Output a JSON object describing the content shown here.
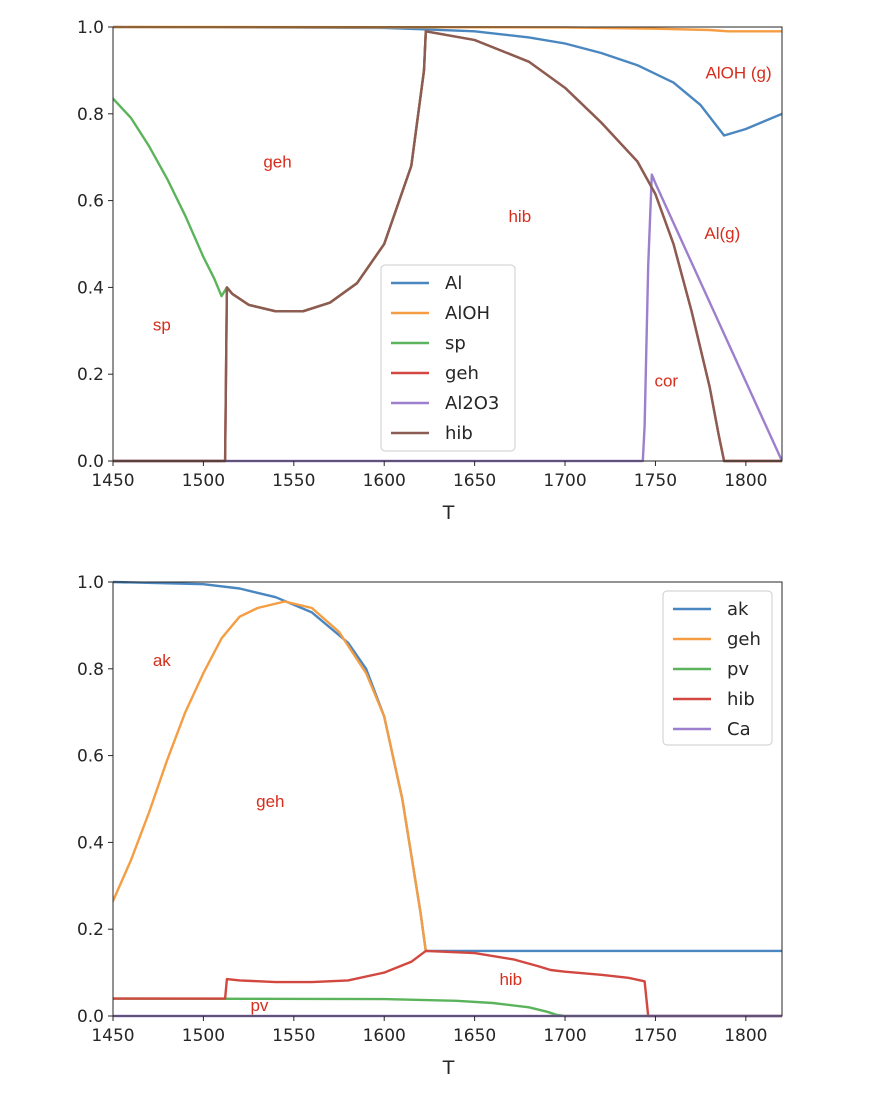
{
  "colors": {
    "blue": "#4a86c0",
    "orange": "#f59d43",
    "green": "#5bb45b",
    "red": "#d2473f",
    "purple": "#9c7fcd",
    "brown": "#8b5d52",
    "annotation": "#d62d1d"
  },
  "chart_data": [
    {
      "type": "line",
      "xlabel": "T",
      "ylabel": "",
      "xlim": [
        1450,
        1820
      ],
      "ylim": [
        0.0,
        1.0
      ],
      "xticks": [
        "1450",
        "1500",
        "1550",
        "1600",
        "1650",
        "1700",
        "1750",
        "1800"
      ],
      "yticks": [
        "0.0",
        "0.2",
        "0.4",
        "0.6",
        "0.8",
        "1.0"
      ],
      "grid": false,
      "legend_position": "lower-center",
      "series": [
        {
          "name": "Al",
          "color": "blue",
          "x": [
            1450,
            1600,
            1620,
            1650,
            1680,
            1700,
            1720,
            1740,
            1760,
            1775,
            1788,
            1800,
            1820
          ],
          "y": [
            1.0,
            0.998,
            0.995,
            0.99,
            0.976,
            0.962,
            0.94,
            0.912,
            0.872,
            0.82,
            0.75,
            0.765,
            0.8
          ]
        },
        {
          "name": "AlOH",
          "color": "orange",
          "x": [
            1450,
            1700,
            1750,
            1780,
            1790,
            1820
          ],
          "y": [
            1.0,
            0.999,
            0.996,
            0.993,
            0.99,
            0.99
          ]
        },
        {
          "name": "sp",
          "color": "green",
          "x": [
            1450,
            1460,
            1470,
            1480,
            1490,
            1500,
            1506,
            1510,
            1513,
            1516,
            1525,
            1540,
            1555,
            1570,
            1585,
            1600,
            1615,
            1622,
            1623
          ],
          "y": [
            0.835,
            0.79,
            0.725,
            0.65,
            0.565,
            0.47,
            0.42,
            0.38,
            0.4,
            0.385,
            0.36,
            0.345,
            0.345,
            0.365,
            0.41,
            0.5,
            0.68,
            0.9,
            0.99
          ]
        },
        {
          "name": "geh",
          "color": "red",
          "x": [
            1450,
            1512,
            1513,
            1516,
            1525,
            1540,
            1555,
            1570,
            1585,
            1600,
            1615,
            1622,
            1623,
            1650,
            1680,
            1700,
            1720,
            1740,
            1750,
            1760,
            1770,
            1780,
            1785,
            1788,
            1820
          ],
          "y": [
            0.0,
            0.0,
            0.4,
            0.385,
            0.36,
            0.345,
            0.345,
            0.365,
            0.41,
            0.5,
            0.68,
            0.9,
            0.99,
            0.97,
            0.92,
            0.86,
            0.78,
            0.69,
            0.615,
            0.5,
            0.345,
            0.17,
            0.06,
            0.0,
            0.0
          ]
        },
        {
          "name": "Al2O3",
          "color": "purple",
          "x": [
            1450,
            1743,
            1744,
            1746,
            1748,
            1750,
            1820
          ],
          "y": [
            0.0,
            0.0,
            0.08,
            0.45,
            0.66,
            0.64,
            0.0
          ]
        },
        {
          "name": "hib",
          "color": "brown",
          "x": [
            1450,
            1512,
            1513,
            1516,
            1525,
            1540,
            1555,
            1570,
            1585,
            1600,
            1615,
            1622,
            1623,
            1650,
            1680,
            1700,
            1720,
            1740,
            1750,
            1760,
            1770,
            1780,
            1785,
            1788,
            1820
          ],
          "y": [
            0.0,
            0.0,
            0.4,
            0.385,
            0.36,
            0.345,
            0.345,
            0.365,
            0.41,
            0.5,
            0.68,
            0.9,
            0.99,
            0.97,
            0.92,
            0.86,
            0.78,
            0.69,
            0.615,
            0.5,
            0.345,
            0.17,
            0.06,
            0.0,
            0.0
          ]
        }
      ],
      "annotations": [
        {
          "text": "geh",
          "x": 1541,
          "y": 0.69
        },
        {
          "text": "hib",
          "x": 1675,
          "y": 0.565
        },
        {
          "text": "sp",
          "x": 1477,
          "y": 0.315
        },
        {
          "text": "AlOH (g)",
          "x": 1796,
          "y": 0.895
        },
        {
          "text": "Al(g)",
          "x": 1787,
          "y": 0.525
        },
        {
          "text": "cor",
          "x": 1756,
          "y": 0.185
        }
      ]
    },
    {
      "type": "line",
      "xlabel": "T",
      "ylabel": "",
      "xlim": [
        1450,
        1820
      ],
      "ylim": [
        0.0,
        1.0
      ],
      "xticks": [
        "1450",
        "1500",
        "1550",
        "1600",
        "1650",
        "1700",
        "1750",
        "1800"
      ],
      "yticks": [
        "0.0",
        "0.2",
        "0.4",
        "0.6",
        "0.8",
        "1.0"
      ],
      "grid": false,
      "legend_position": "top-right",
      "series": [
        {
          "name": "ak",
          "color": "blue",
          "x": [
            1450,
            1500,
            1520,
            1540,
            1560,
            1580,
            1590,
            1600,
            1610,
            1620,
            1623,
            1820
          ],
          "y": [
            1.0,
            0.995,
            0.985,
            0.965,
            0.93,
            0.86,
            0.8,
            0.69,
            0.5,
            0.24,
            0.15,
            0.15
          ]
        },
        {
          "name": "geh",
          "color": "orange",
          "x": [
            1450,
            1460,
            1470,
            1480,
            1490,
            1500,
            1510,
            1513,
            1520,
            1530,
            1545,
            1560,
            1575,
            1590,
            1600,
            1610,
            1620,
            1623
          ],
          "y": [
            0.265,
            0.36,
            0.47,
            0.59,
            0.7,
            0.79,
            0.87,
            0.885,
            0.92,
            0.94,
            0.955,
            0.94,
            0.885,
            0.79,
            0.69,
            0.5,
            0.24,
            0.15
          ]
        },
        {
          "name": "pv",
          "color": "green",
          "x": [
            1450,
            1600,
            1640,
            1660,
            1680,
            1690,
            1695,
            1700,
            1820
          ],
          "y": [
            0.04,
            0.039,
            0.035,
            0.03,
            0.02,
            0.01,
            0.003,
            0.0,
            0.0
          ]
        },
        {
          "name": "hib",
          "color": "red",
          "x": [
            1450,
            1512,
            1513,
            1520,
            1540,
            1560,
            1580,
            1600,
            1615,
            1623,
            1650,
            1672,
            1685,
            1692,
            1700,
            1720,
            1735,
            1744,
            1746,
            1820
          ],
          "y": [
            0.04,
            0.04,
            0.085,
            0.082,
            0.078,
            0.078,
            0.082,
            0.1,
            0.125,
            0.15,
            0.145,
            0.13,
            0.115,
            0.106,
            0.102,
            0.095,
            0.088,
            0.08,
            0.0,
            0.0
          ]
        },
        {
          "name": "Ca",
          "color": "purple",
          "x": [
            1450,
            1820
          ],
          "y": [
            0.0,
            0.0
          ]
        }
      ],
      "annotations": [
        {
          "text": "ak",
          "x": 1477,
          "y": 0.82
        },
        {
          "text": "geh",
          "x": 1537,
          "y": 0.495
        },
        {
          "text": "hib",
          "x": 1670,
          "y": 0.085
        },
        {
          "text": "pv",
          "x": 1531,
          "y": 0.025
        }
      ]
    }
  ]
}
